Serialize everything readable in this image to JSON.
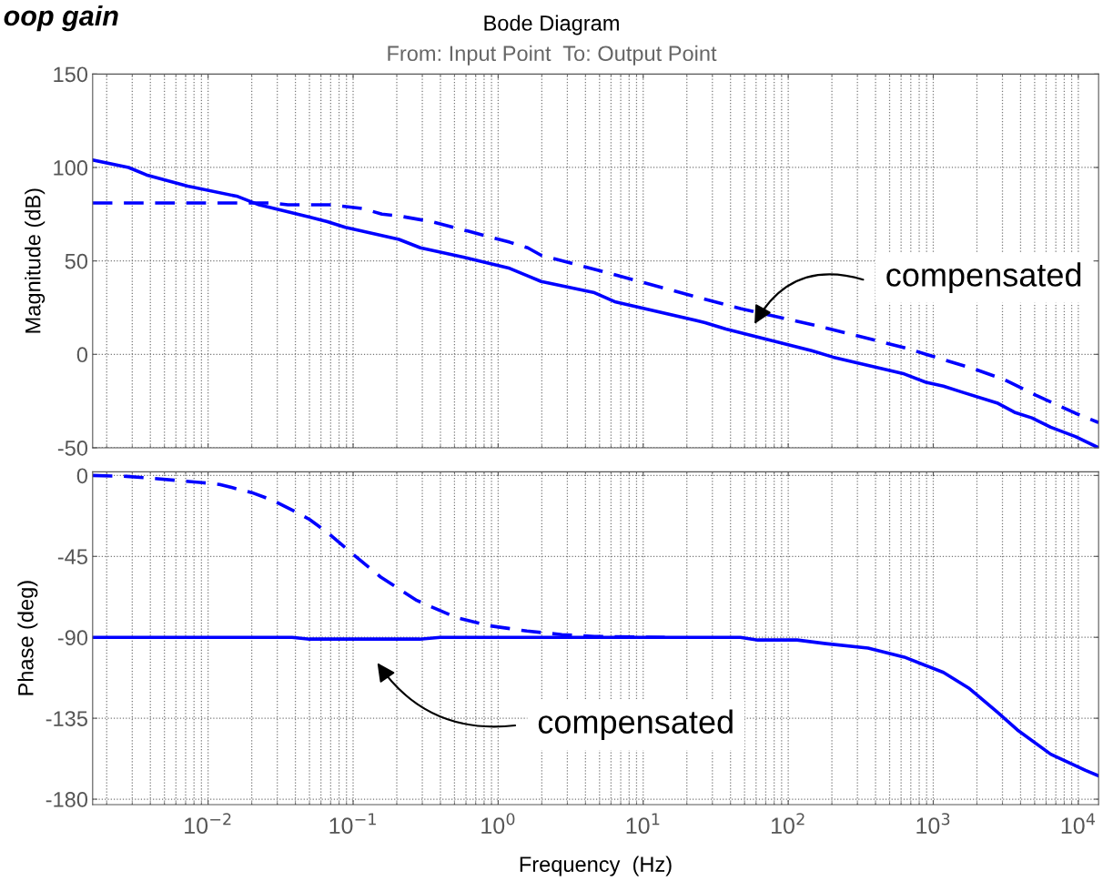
{
  "chart_data": [
    {
      "type": "line",
      "title": "Bode Diagram",
      "subtitle": "From: Input Point  To: Output Point",
      "ylabel": "Magnitude (dB)",
      "xlim": [
        0.0016,
        13800
      ],
      "ylim": [
        -50,
        150
      ],
      "yticks": [
        -50,
        0,
        50,
        100,
        150
      ],
      "log": "x",
      "grid": true,
      "tick_labels": "y",
      "xticks": [
        {
          "value": 0.01,
          "label": null
        },
        {
          "value": 0.1,
          "label": null
        },
        {
          "value": 1,
          "label": null
        },
        {
          "value": 10,
          "label": null
        },
        {
          "value": 100,
          "label": null
        },
        {
          "value": 1000,
          "label": null
        },
        {
          "value": 10000,
          "label": null
        }
      ],
      "series": [
        {
          "color": "#0000ff",
          "line_style": "solid",
          "x": [
            0.0016,
            0.00283,
            0.00376,
            0.00724,
            0.016,
            0.0225,
            0.0501,
            0.0664,
            0.0883,
            0.207,
            0.291,
            0.575,
            1.2,
            1.6,
            1.98,
            4.61,
            6.46,
            26.7,
            37.2,
            145,
            204,
            631,
            891,
            1175,
            1549,
            2754,
            3631,
            4786,
            6457,
            9550,
            13800
          ],
          "values": [
            104,
            100,
            96,
            90,
            84.5,
            80,
            73.5,
            71,
            68,
            61.5,
            57,
            52,
            46,
            42,
            39,
            33,
            28,
            17,
            13.5,
            2,
            -1.5,
            -10.5,
            -15,
            -17,
            -20,
            -26,
            -31,
            -34,
            -39,
            -44,
            -50
          ]
        },
        {
          "color": "#0000ff",
          "line_style": "dashed",
          "x": [
            0.0016,
            0.0282,
            0.0355,
            0.0708,
            0.117,
            0.158,
            0.209,
            0.347,
            0.617,
            1.2,
            1.6,
            1.98,
            6.12,
            10,
            28.2,
            46.8,
            155,
            676,
            891,
            1862,
            3090,
            5129,
            9550,
            13800
          ],
          "values": [
            81,
            81,
            80,
            80,
            78,
            75,
            74,
            71,
            66,
            60,
            57,
            53,
            43,
            38.5,
            29,
            24.5,
            15.5,
            3,
            0,
            -7.5,
            -13.5,
            -22,
            -31.5,
            -36.5
          ]
        }
      ],
      "annotations": [
        "compensated",
        "oop gain"
      ]
    },
    {
      "type": "line",
      "xlabel": "Frequency  (Hz)",
      "ylabel": "Phase (deg)",
      "xlim": [
        0.0016,
        13800
      ],
      "ylim": [
        -183,
        2
      ],
      "yticks": [
        -180,
        -135,
        -90,
        -45,
        0
      ],
      "log": "x",
      "grid": true,
      "xticks": [
        {
          "value": 0.01,
          "label": "10$^{−2}$"
        },
        {
          "value": 0.1,
          "label": "10$^{−1}$"
        },
        {
          "value": 1,
          "label": "10$^{0}$"
        },
        {
          "value": 10,
          "label": "10$^{1}$"
        },
        {
          "value": 100,
          "label": "10$^{2}$"
        },
        {
          "value": 1000,
          "label": "10$^{3}$"
        },
        {
          "value": 10000,
          "label": "10$^{4}$"
        }
      ],
      "series": [
        {
          "color": "#0000ff",
          "line_style": "solid",
          "x": [
            0.0016,
            0.038,
            0.05,
            0.288,
            0.398,
            46.8,
            61.7,
            115,
            182,
            355,
            631,
            1175,
            1778,
            2754,
            3802,
            6457,
            11220,
            13800
          ],
          "values": [
            -90,
            -90,
            -91,
            -91,
            -90,
            -90,
            -91.5,
            -91.5,
            -93.5,
            -96,
            -101,
            -109.5,
            -118.5,
            -131.5,
            -141.5,
            -155,
            -164,
            -167
          ]
        },
        {
          "color": "#0000ff",
          "line_style": "dashed",
          "x": [
            0.0016,
            0.00275,
            0.00407,
            0.00912,
            0.012,
            0.02,
            0.0282,
            0.0398,
            0.0501,
            0.0661,
            0.0989,
            0.155,
            0.275,
            0.513,
            0.857,
            1.58,
            2.75,
            4.61,
            14.1
          ],
          "values": [
            0,
            -0.5,
            -1.5,
            -4,
            -5,
            -9.5,
            -14,
            -20,
            -24.5,
            -31.5,
            -43.5,
            -56.5,
            -69.5,
            -79,
            -83.5,
            -86.5,
            -88.5,
            -89.5,
            -90
          ]
        }
      ],
      "annotations": [
        "compensated"
      ]
    }
  ]
}
